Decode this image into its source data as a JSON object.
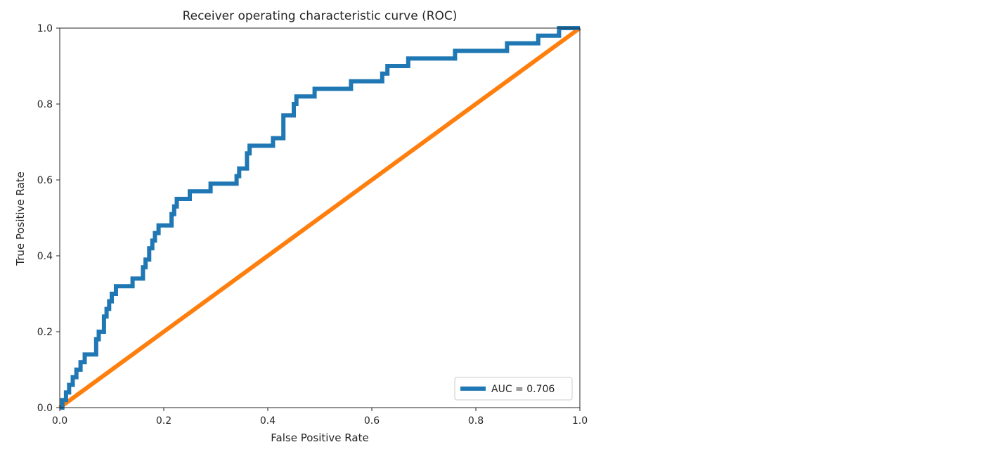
{
  "chart_data": {
    "type": "line",
    "title": "Receiver operating characteristic curve (ROC)",
    "xlabel": "False Positive Rate",
    "ylabel": "True Positive Rate",
    "xlim": [
      0,
      1
    ],
    "ylim": [
      0,
      1
    ],
    "grid": false,
    "legend_position": "lower-right",
    "x_ticks": [
      "0.0",
      "0.2",
      "0.4",
      "0.6",
      "0.8",
      "1.0"
    ],
    "y_ticks": [
      "0.0",
      "0.2",
      "0.4",
      "0.6",
      "0.8",
      "1.0"
    ],
    "colors": {
      "roc": "#1f77b4",
      "diagonal": "#ff7f0e",
      "axes": "#262626"
    },
    "series": [
      {
        "name": "AUC = 0.706",
        "role": "roc",
        "x": [
          0,
          0.005,
          0.005,
          0.012,
          0.012,
          0.018,
          0.018,
          0.025,
          0.025,
          0.032,
          0.032,
          0.04,
          0.04,
          0.048,
          0.048,
          0.07,
          0.07,
          0.075,
          0.075,
          0.085,
          0.085,
          0.09,
          0.09,
          0.095,
          0.095,
          0.1,
          0.1,
          0.108,
          0.108,
          0.14,
          0.14,
          0.16,
          0.16,
          0.165,
          0.165,
          0.172,
          0.172,
          0.178,
          0.178,
          0.183,
          0.183,
          0.19,
          0.19,
          0.215,
          0.215,
          0.22,
          0.22,
          0.225,
          0.225,
          0.25,
          0.25,
          0.29,
          0.29,
          0.34,
          0.34,
          0.345,
          0.345,
          0.36,
          0.36,
          0.365,
          0.365,
          0.41,
          0.41,
          0.43,
          0.43,
          0.45,
          0.45,
          0.455,
          0.455,
          0.49,
          0.49,
          0.56,
          0.56,
          0.62,
          0.62,
          0.63,
          0.63,
          0.67,
          0.67,
          0.76,
          0.76,
          0.86,
          0.86,
          0.92,
          0.92,
          0.96,
          0.96,
          1.0
        ],
        "y": [
          0,
          0,
          0.02,
          0.02,
          0.04,
          0.04,
          0.06,
          0.06,
          0.08,
          0.08,
          0.1,
          0.1,
          0.12,
          0.12,
          0.14,
          0.14,
          0.18,
          0.18,
          0.2,
          0.2,
          0.24,
          0.24,
          0.26,
          0.26,
          0.28,
          0.28,
          0.3,
          0.3,
          0.32,
          0.32,
          0.34,
          0.34,
          0.37,
          0.37,
          0.39,
          0.39,
          0.42,
          0.42,
          0.44,
          0.44,
          0.46,
          0.46,
          0.48,
          0.48,
          0.51,
          0.51,
          0.53,
          0.53,
          0.55,
          0.55,
          0.57,
          0.57,
          0.59,
          0.59,
          0.61,
          0.61,
          0.63,
          0.63,
          0.67,
          0.67,
          0.69,
          0.69,
          0.71,
          0.71,
          0.77,
          0.77,
          0.8,
          0.8,
          0.82,
          0.82,
          0.84,
          0.84,
          0.86,
          0.86,
          0.88,
          0.88,
          0.9,
          0.9,
          0.92,
          0.92,
          0.94,
          0.94,
          0.96,
          0.96,
          0.98,
          0.98,
          1.0,
          1.0
        ]
      },
      {
        "name": "",
        "role": "diagonal",
        "x": [
          0,
          1
        ],
        "y": [
          0,
          1
        ]
      }
    ]
  }
}
